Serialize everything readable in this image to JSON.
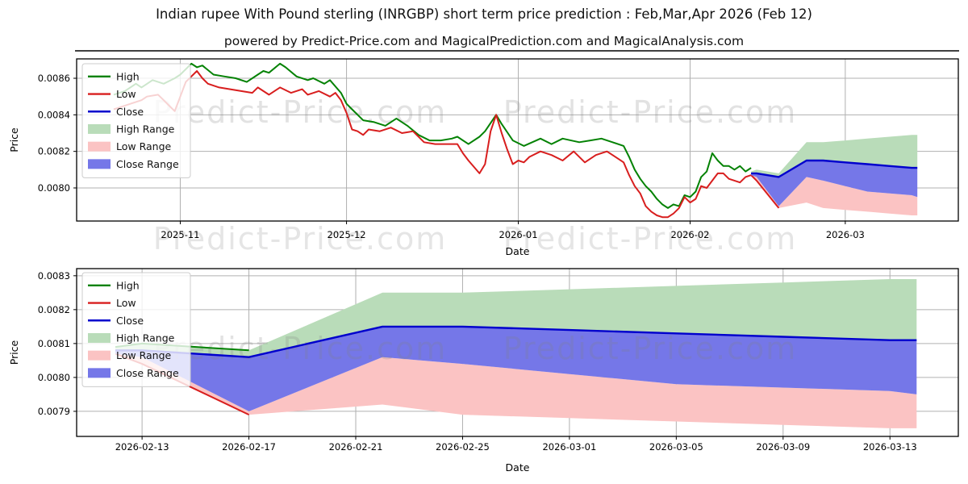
{
  "header": {
    "title": "Indian rupee With Pound sterling (INRGBP) short term price prediction : Feb,Mar,Apr 2026 (Feb 12)",
    "subtitle": "powered by Predict-Price.com and MagicalPrediction.com and MagicalAnalysis.com"
  },
  "watermark": {
    "text": "Predict-Price.com"
  },
  "colors": {
    "high_line": "#048204",
    "low_line": "#d81e1e",
    "close_line": "#0000cd",
    "high_range_fill": "#b9dcb9",
    "low_range_fill": "#fbc3c3",
    "close_range_fill": "#7577e8",
    "grid": "#b0b0b0",
    "axis": "#000000",
    "watermark_gray": "#808080"
  },
  "legend": {
    "items": [
      {
        "label": "High",
        "swatch": "line",
        "color_key": "high_line"
      },
      {
        "label": "Low",
        "swatch": "line",
        "color_key": "low_line"
      },
      {
        "label": "Close",
        "swatch": "line",
        "color_key": "close_line"
      },
      {
        "label": "High Range",
        "swatch": "patch",
        "color_key": "high_range_fill"
      },
      {
        "label": "Low Range",
        "swatch": "patch",
        "color_key": "low_range_fill"
      },
      {
        "label": "Close Range",
        "swatch": "patch",
        "color_key": "close_range_fill"
      }
    ]
  },
  "chart_data": [
    {
      "type": "line",
      "name": "historical-price-with-prediction",
      "xlabel": "Date",
      "ylabel": "Price",
      "epoch_day0": "2025-10-20",
      "x_ticks": [
        {
          "day": 12,
          "label": "2025-11"
        },
        {
          "day": 42,
          "label": "2025-12"
        },
        {
          "day": 73,
          "label": "2026-01"
        },
        {
          "day": 104,
          "label": "2026-02"
        },
        {
          "day": 132,
          "label": "2026-03"
        }
      ],
      "y_ticks": [
        0.0086,
        0.0084,
        0.0082,
        0.008
      ],
      "xlim_days": [
        -6.7,
        152.4
      ],
      "ylim": [
        0.007819,
        0.008706
      ],
      "grid": true,
      "legend_position": "upper-left",
      "series": {
        "high": [
          [
            0,
            0.00851
          ],
          [
            2,
            0.00853
          ],
          [
            4,
            0.00857
          ],
          [
            5,
            0.00855
          ],
          [
            7,
            0.00859
          ],
          [
            9,
            0.00857
          ],
          [
            11,
            0.0086
          ],
          [
            12,
            0.00862
          ],
          [
            14,
            0.00868
          ],
          [
            15,
            0.00866
          ],
          [
            16,
            0.00867
          ],
          [
            18,
            0.00862
          ],
          [
            20,
            0.00861
          ],
          [
            22,
            0.0086
          ],
          [
            24,
            0.00858
          ],
          [
            26,
            0.00862
          ],
          [
            27,
            0.00864
          ],
          [
            28,
            0.00863
          ],
          [
            30,
            0.00868
          ],
          [
            31,
            0.00866
          ],
          [
            33,
            0.00861
          ],
          [
            35,
            0.00859
          ],
          [
            36,
            0.0086
          ],
          [
            38,
            0.00857
          ],
          [
            39,
            0.00859
          ],
          [
            41,
            0.00852
          ],
          [
            42,
            0.00846
          ],
          [
            43,
            0.00843
          ],
          [
            45,
            0.00837
          ],
          [
            47,
            0.00836
          ],
          [
            49,
            0.00834
          ],
          [
            51,
            0.00838
          ],
          [
            53,
            0.00834
          ],
          [
            55,
            0.00829
          ],
          [
            57,
            0.00826
          ],
          [
            59,
            0.00826
          ],
          [
            61,
            0.00827
          ],
          [
            62,
            0.00828
          ],
          [
            64,
            0.00824
          ],
          [
            66,
            0.00828
          ],
          [
            67,
            0.00831
          ],
          [
            69,
            0.0084
          ],
          [
            70,
            0.00835
          ],
          [
            72,
            0.00826
          ],
          [
            74,
            0.00823
          ],
          [
            77,
            0.00827
          ],
          [
            79,
            0.00824
          ],
          [
            81,
            0.00827
          ],
          [
            84,
            0.00825
          ],
          [
            86,
            0.00826
          ],
          [
            88,
            0.00827
          ],
          [
            90,
            0.00825
          ],
          [
            92,
            0.00823
          ],
          [
            93,
            0.00817
          ],
          [
            94,
            0.0081
          ],
          [
            95,
            0.00805
          ],
          [
            96,
            0.00801
          ],
          [
            97,
            0.00798
          ],
          [
            98,
            0.00794
          ],
          [
            99,
            0.00791
          ],
          [
            100,
            0.00789
          ],
          [
            101,
            0.00791
          ],
          [
            102,
            0.0079
          ],
          [
            103,
            0.00796
          ],
          [
            104,
            0.00795
          ],
          [
            105,
            0.00798
          ],
          [
            106,
            0.00806
          ],
          [
            107,
            0.00809
          ],
          [
            108,
            0.00819
          ],
          [
            109,
            0.00815
          ],
          [
            110,
            0.00812
          ],
          [
            111,
            0.00812
          ],
          [
            112,
            0.0081
          ],
          [
            113,
            0.00812
          ],
          [
            114,
            0.00809
          ],
          [
            115,
            0.00811
          ]
        ],
        "low": [
          [
            0,
            0.00843
          ],
          [
            1,
            0.00844
          ],
          [
            3,
            0.00846
          ],
          [
            5,
            0.00848
          ],
          [
            6,
            0.0085
          ],
          [
            8,
            0.00851
          ],
          [
            9,
            0.00848
          ],
          [
            10,
            0.00845
          ],
          [
            11,
            0.00842
          ],
          [
            12,
            0.0085
          ],
          [
            13,
            0.00858
          ],
          [
            15,
            0.00864
          ],
          [
            16,
            0.0086
          ],
          [
            17,
            0.00857
          ],
          [
            19,
            0.00855
          ],
          [
            21,
            0.00854
          ],
          [
            23,
            0.00853
          ],
          [
            25,
            0.00852
          ],
          [
            26,
            0.00855
          ],
          [
            28,
            0.00851
          ],
          [
            30,
            0.00855
          ],
          [
            32,
            0.00852
          ],
          [
            34,
            0.00854
          ],
          [
            35,
            0.00851
          ],
          [
            37,
            0.00853
          ],
          [
            39,
            0.0085
          ],
          [
            40,
            0.00852
          ],
          [
            41,
            0.00848
          ],
          [
            42,
            0.00841
          ],
          [
            43,
            0.00832
          ],
          [
            44,
            0.00831
          ],
          [
            45,
            0.00829
          ],
          [
            46,
            0.00832
          ],
          [
            48,
            0.00831
          ],
          [
            50,
            0.00833
          ],
          [
            52,
            0.0083
          ],
          [
            54,
            0.00831
          ],
          [
            56,
            0.00825
          ],
          [
            58,
            0.00824
          ],
          [
            60,
            0.00824
          ],
          [
            62,
            0.00824
          ],
          [
            63,
            0.00819
          ],
          [
            64,
            0.00815
          ],
          [
            66,
            0.00808
          ],
          [
            67,
            0.00813
          ],
          [
            68,
            0.00831
          ],
          [
            69,
            0.0084
          ],
          [
            70,
            0.0083
          ],
          [
            71,
            0.00821
          ],
          [
            72,
            0.00813
          ],
          [
            73,
            0.00815
          ],
          [
            74,
            0.00814
          ],
          [
            75,
            0.00817
          ],
          [
            77,
            0.0082
          ],
          [
            79,
            0.00818
          ],
          [
            81,
            0.00815
          ],
          [
            83,
            0.0082
          ],
          [
            85,
            0.00814
          ],
          [
            87,
            0.00818
          ],
          [
            89,
            0.0082
          ],
          [
            91,
            0.00816
          ],
          [
            92,
            0.00814
          ],
          [
            93,
            0.00807
          ],
          [
            94,
            0.00801
          ],
          [
            95,
            0.00797
          ],
          [
            96,
            0.0079
          ],
          [
            97,
            0.00787
          ],
          [
            98,
            0.00785
          ],
          [
            99,
            0.00784
          ],
          [
            100,
            0.00784
          ],
          [
            101,
            0.00786
          ],
          [
            102,
            0.00789
          ],
          [
            103,
            0.00795
          ],
          [
            104,
            0.00792
          ],
          [
            105,
            0.00794
          ],
          [
            106,
            0.00801
          ],
          [
            107,
            0.008
          ],
          [
            108,
            0.00804
          ],
          [
            109,
            0.00808
          ],
          [
            110,
            0.00808
          ],
          [
            111,
            0.00805
          ],
          [
            112,
            0.00804
          ],
          [
            113,
            0.00803
          ],
          [
            114,
            0.00806
          ],
          [
            115,
            0.00807
          ]
        ]
      },
      "prediction": {
        "days": [
          115,
          116,
          120,
          125,
          128,
          132,
          136,
          140,
          144,
          145
        ],
        "dates": [
          "2026-02-12",
          "2026-02-13",
          "2026-02-17",
          "2026-02-22",
          "2026-02-25",
          "2026-03-01",
          "2026-03-05",
          "2026-03-09",
          "2026-03-13",
          "2026-03-14"
        ],
        "close": [
          0.00808,
          0.00808,
          0.00806,
          0.00815,
          0.00815,
          0.00814,
          0.00813,
          0.00812,
          0.00811,
          0.00811
        ],
        "high_upper": [
          0.00809,
          0.0081,
          0.00808,
          0.00825,
          0.00825,
          0.00826,
          0.00827,
          0.00828,
          0.00829,
          0.00829
        ],
        "close_lower": [
          0.00807,
          0.00806,
          0.0079,
          0.00806,
          0.00804,
          0.00801,
          0.00798,
          0.00797,
          0.00796,
          0.00795
        ],
        "low_lower": [
          0.00807,
          0.00804,
          0.00789,
          0.00792,
          0.00789,
          0.00788,
          0.00787,
          0.00786,
          0.00785,
          0.00785
        ]
      }
    },
    {
      "type": "line",
      "name": "prediction-detail",
      "xlabel": "Date",
      "ylabel": "Price",
      "epoch_day0": "2025-10-20",
      "x_ticks": [
        {
          "day": 116,
          "label": "2026-02-13"
        },
        {
          "day": 120,
          "label": "2026-02-17"
        },
        {
          "day": 124,
          "label": "2026-02-21"
        },
        {
          "day": 128,
          "label": "2026-02-25"
        },
        {
          "day": 132,
          "label": "2026-03-01"
        },
        {
          "day": 136,
          "label": "2026-03-05"
        },
        {
          "day": 140,
          "label": "2026-03-09"
        },
        {
          "day": 144,
          "label": "2026-03-13"
        }
      ],
      "y_ticks": [
        0.0083,
        0.0082,
        0.0081,
        0.008,
        0.0079
      ],
      "xlim_days": [
        113.55,
        146.56
      ],
      "ylim": [
        0.007826,
        0.008321
      ],
      "grid": true,
      "legend_position": "upper-left",
      "prediction": {
        "days": [
          115,
          116,
          120,
          125,
          128,
          132,
          136,
          140,
          144,
          145
        ],
        "dates": [
          "2026-02-12",
          "2026-02-13",
          "2026-02-17",
          "2026-02-22",
          "2026-02-25",
          "2026-03-01",
          "2026-03-05",
          "2026-03-09",
          "2026-03-13",
          "2026-03-14"
        ],
        "close": [
          0.00808,
          0.00808,
          0.00806,
          0.00815,
          0.00815,
          0.00814,
          0.00813,
          0.00812,
          0.00811,
          0.00811
        ],
        "high_upper": [
          0.00809,
          0.0081,
          0.00808,
          0.00825,
          0.00825,
          0.00826,
          0.00827,
          0.00828,
          0.00829,
          0.00829
        ],
        "close_lower": [
          0.00807,
          0.00806,
          0.0079,
          0.00806,
          0.00804,
          0.00801,
          0.00798,
          0.00797,
          0.00796,
          0.00795
        ],
        "low_lower": [
          0.00807,
          0.00804,
          0.00789,
          0.00792,
          0.00789,
          0.00788,
          0.00787,
          0.00786,
          0.00785,
          0.00785
        ]
      }
    }
  ]
}
